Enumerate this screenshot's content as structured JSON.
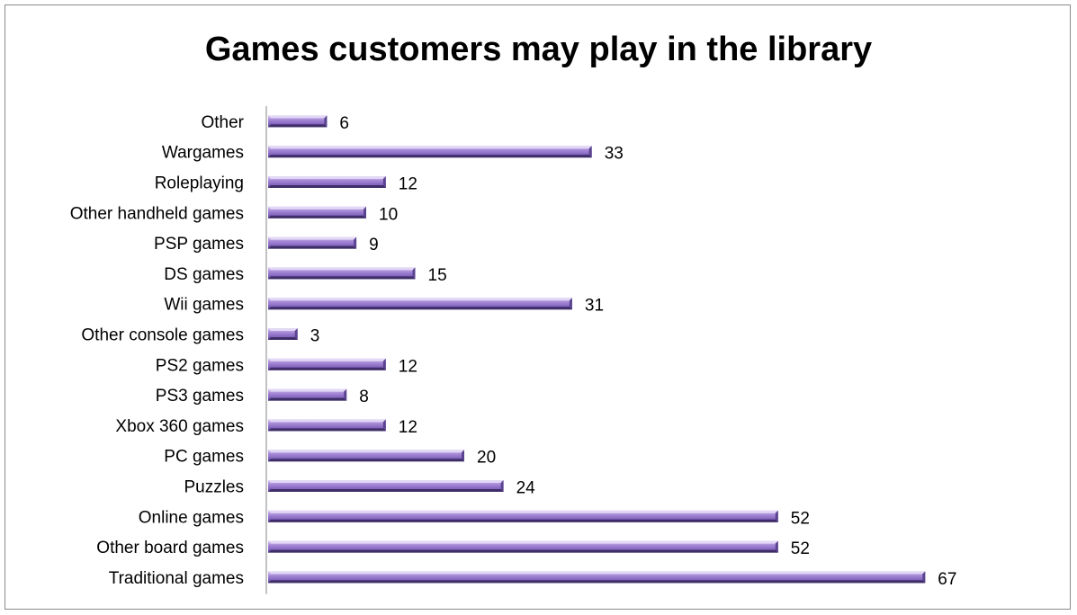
{
  "chart_data": {
    "type": "bar",
    "orientation": "horizontal",
    "title": "Games customers may play in the library",
    "xlabel": "",
    "ylabel": "",
    "categories": [
      "Other",
      "Wargames",
      "Roleplaying",
      "Other handheld games",
      "PSP games",
      "DS games",
      "Wii games",
      "Other console games",
      "PS2 games",
      "PS3 games",
      "Xbox 360 games",
      "PC games",
      "Puzzles",
      "Online games",
      "Other board games",
      "Traditional games"
    ],
    "values": [
      6,
      33,
      12,
      10,
      9,
      15,
      31,
      3,
      12,
      8,
      12,
      20,
      24,
      52,
      52,
      67
    ],
    "data_labels": [
      "6",
      "33",
      "12",
      "10",
      "9",
      "15",
      "31",
      "3",
      "12",
      "8",
      "12",
      "20",
      "24",
      "52",
      "52",
      "67"
    ],
    "xlim": [
      0,
      67
    ],
    "grid": false,
    "legend": "none",
    "bar_color": "#9b7ed0",
    "bar_color_dark": "#4f3a7c",
    "bar_color_light": "#c9b8ea"
  }
}
